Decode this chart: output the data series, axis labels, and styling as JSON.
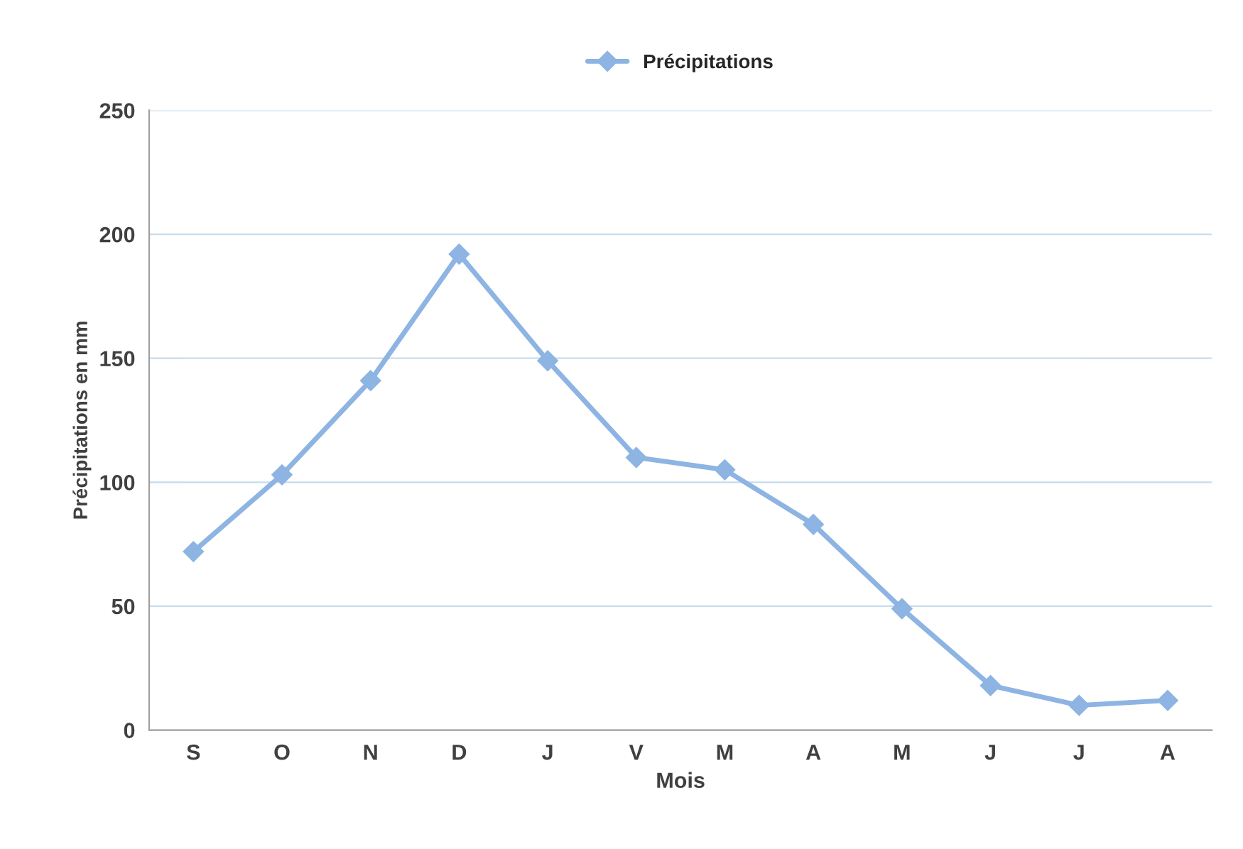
{
  "chart_data": {
    "type": "line",
    "xlabel": "Mois",
    "ylabel": "Précipitations en mm",
    "categories": [
      "S",
      "O",
      "N",
      "D",
      "J",
      "V",
      "M",
      "A",
      "M",
      "J",
      "J",
      "A"
    ],
    "series": [
      {
        "name": "Précipitations",
        "color": "#8db4e2",
        "values": [
          72,
          103,
          141,
          192,
          149,
          110,
          105,
          83,
          49,
          18,
          10,
          12
        ]
      }
    ],
    "ylim": [
      0,
      250
    ],
    "yticks": [
      0,
      50,
      100,
      150,
      200,
      250
    ],
    "grid": "y",
    "legend": "top",
    "marker": "diamond",
    "line_style": "solid"
  }
}
